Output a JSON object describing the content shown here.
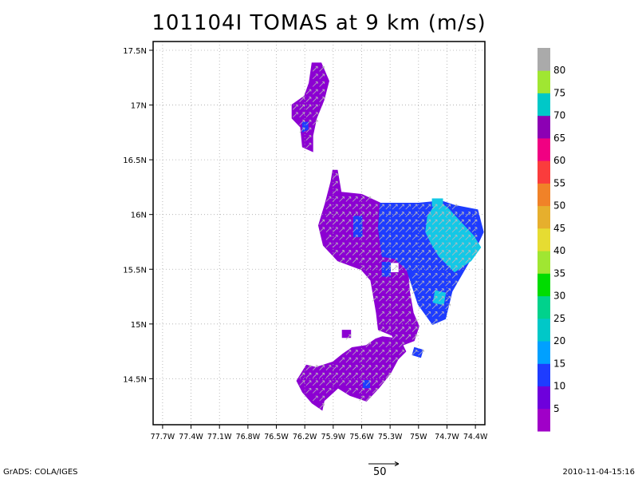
{
  "title": "101104I TOMAS at 9 km (m/s)",
  "footer": {
    "software": "GrADS: COLA/IGES",
    "timestamp": "2010-11-04-15:16",
    "reference_vector_label": "50"
  },
  "map": {
    "lat_labels": [
      "17.5N",
      "17N",
      "16.5N",
      "16N",
      "15.5N",
      "15N",
      "14.5N"
    ],
    "lon_labels": [
      "77.7W",
      "77.4W",
      "77.1W",
      "76.8W",
      "76.5W",
      "76.2W",
      "75.9W",
      "75.6W",
      "75.3W",
      "75W",
      "74.7W",
      "74.4W"
    ],
    "lat_range": [
      14.08,
      17.58
    ],
    "lon_range": [
      -77.8,
      -74.3
    ],
    "grid": true,
    "grid_style": "dotted"
  },
  "colorbar": {
    "labels": [
      "5",
      "10",
      "15",
      "20",
      "25",
      "30",
      "35",
      "40",
      "45",
      "50",
      "55",
      "60",
      "65",
      "70",
      "75",
      "80"
    ],
    "colors": [
      "#a000c8",
      "#6e00dc",
      "#1e3cff",
      "#00a0ff",
      "#00c8c8",
      "#00d28c",
      "#00dc00",
      "#a0e632",
      "#e6dc32",
      "#e6af2d",
      "#f08228",
      "#fa3c3c",
      "#f00082",
      "#8c00b4",
      "#00c8c8",
      "#a0e632",
      "#aaaaaa"
    ]
  },
  "colors": {
    "purple": "#a000c8",
    "violet": "#8c00d2",
    "blue": "#1e3cff",
    "cyan": "#14c8e6",
    "arrow": "#bbbbbb"
  }
}
